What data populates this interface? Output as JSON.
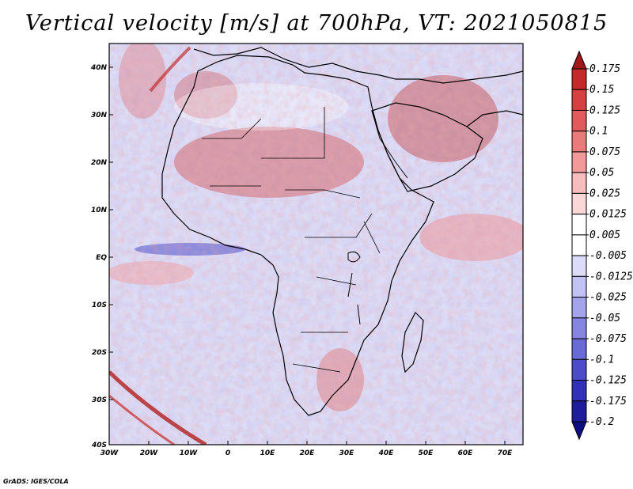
{
  "title": "Vertical velocity [m/s] at 700hPa, VT: 2021050815",
  "credit": "GrADS: IGES/COLA",
  "map": {
    "region": "Africa and Middle East",
    "lon_range": [
      -30,
      75
    ],
    "lat_range": [
      -40,
      45
    ],
    "lat_ticks": [
      "40N",
      "30N",
      "20N",
      "10N",
      "EQ",
      "10S",
      "20S",
      "30S",
      "40S"
    ],
    "lon_ticks": [
      "30W",
      "20W",
      "10W",
      "0",
      "10E",
      "20E",
      "30E",
      "40E",
      "50E",
      "60E",
      "70E"
    ]
  },
  "colorbar": {
    "levels": [
      "0.175",
      "0.15",
      "0.125",
      "0.1",
      "0.075",
      "0.05",
      "0.025",
      "0.0125",
      "0.005",
      "-0.005",
      "-0.0125",
      "-0.025",
      "-0.05",
      "-0.075",
      "-0.1",
      "-0.125",
      "-0.175",
      "-0.2"
    ],
    "colors": [
      "#a01818",
      "#c42a2a",
      "#d64040",
      "#e25a5a",
      "#eb7a7a",
      "#f29a9a",
      "#f7bcbc",
      "#fbd8d8",
      "#ffffff",
      "#ffffff",
      "#dcdcfa",
      "#c2c2f4",
      "#a4a4ec",
      "#8686e2",
      "#6a6ad6",
      "#4c4cca",
      "#3030b8",
      "#1e1e9a",
      "#0e0e80"
    ]
  }
}
